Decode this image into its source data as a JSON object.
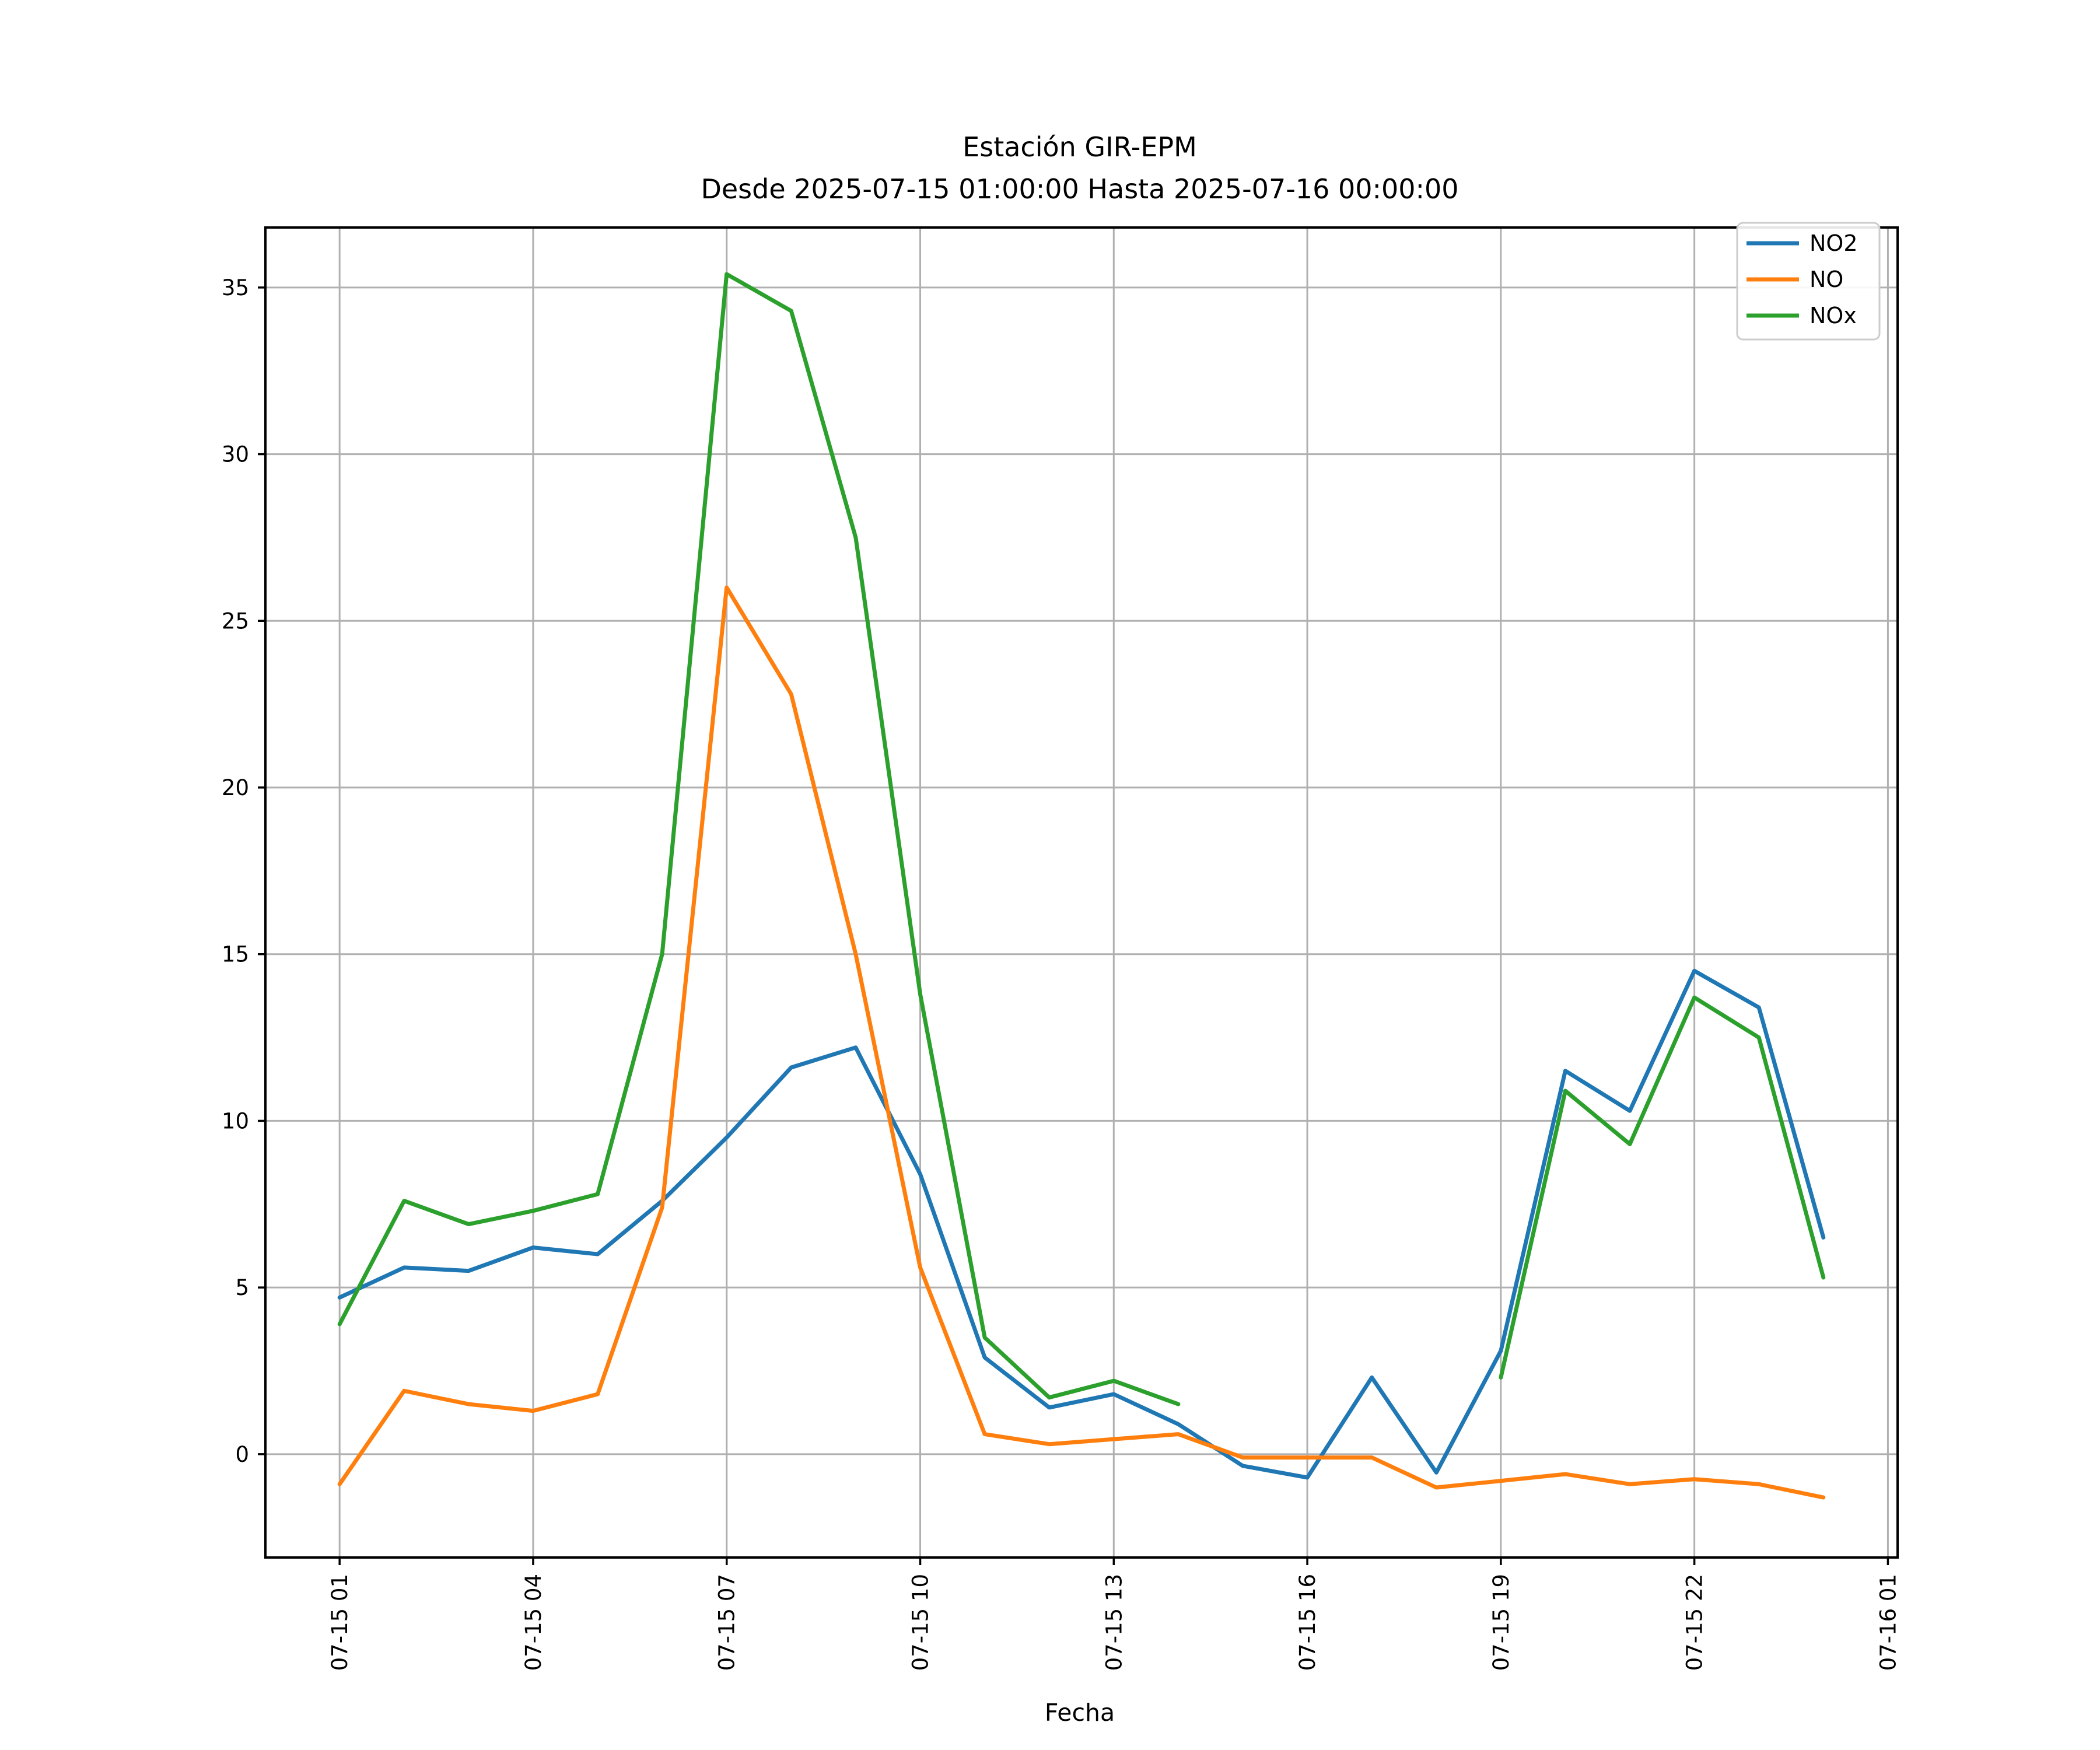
{
  "chart_data": {
    "type": "line",
    "title": "Estación GIR-EPM",
    "subtitle": "Desde 2025-07-15 01:00:00 Hasta 2025-07-16 00:00:00",
    "xlabel": "Fecha",
    "ylabel": "",
    "grid": true,
    "legend_position": "upper right",
    "x_hours": [
      1,
      2,
      3,
      4,
      5,
      6,
      7,
      8,
      9,
      10,
      11,
      12,
      13,
      14,
      15,
      16,
      17,
      18,
      19,
      20,
      21,
      22,
      23,
      24
    ],
    "x_tick_hours": [
      1,
      4,
      7,
      10,
      13,
      16,
      19,
      22,
      25
    ],
    "x_tick_labels": [
      "07-15 01",
      "07-15 04",
      "07-15 07",
      "07-15 10",
      "07-15 13",
      "07-15 16",
      "07-15 19",
      "07-15 22",
      "07-16 01"
    ],
    "y_ticks": [
      0,
      5,
      10,
      15,
      20,
      25,
      30,
      35
    ],
    "xlim": [
      -0.15,
      25.15
    ],
    "ylim": [
      -3.1,
      36.8
    ],
    "series": [
      {
        "name": "NO2",
        "color": "#1f77b4",
        "values": [
          4.7,
          5.6,
          5.5,
          6.2,
          6.0,
          7.6,
          9.5,
          11.6,
          12.2,
          8.4,
          2.9,
          1.4,
          1.8,
          0.9,
          -0.35,
          -0.7,
          2.3,
          -0.55,
          3.1,
          11.5,
          10.3,
          14.5,
          13.4,
          6.5
        ]
      },
      {
        "name": "NO",
        "color": "#ff7f0e",
        "values": [
          -0.9,
          1.9,
          1.5,
          1.3,
          1.8,
          7.4,
          26.0,
          22.8,
          15.0,
          5.6,
          0.6,
          0.3,
          0.45,
          0.6,
          -0.1,
          -0.1,
          -0.1,
          -1.0,
          -0.8,
          -0.6,
          -0.9,
          -0.75,
          -0.9,
          -1.3
        ]
      },
      {
        "name": "NOx",
        "color": "#2ca02c",
        "values": [
          3.9,
          7.6,
          6.9,
          7.3,
          7.8,
          15.0,
          35.4,
          34.3,
          27.5,
          13.8,
          3.5,
          1.7,
          2.2,
          1.5,
          null,
          null,
          null,
          null,
          2.3,
          10.9,
          9.3,
          13.7,
          12.5,
          5.3
        ]
      }
    ],
    "style": {
      "grid_color": "#b0b0b0",
      "spine_color": "#000000",
      "background": "#ffffff",
      "legend_border_color": "#cccccc"
    }
  }
}
